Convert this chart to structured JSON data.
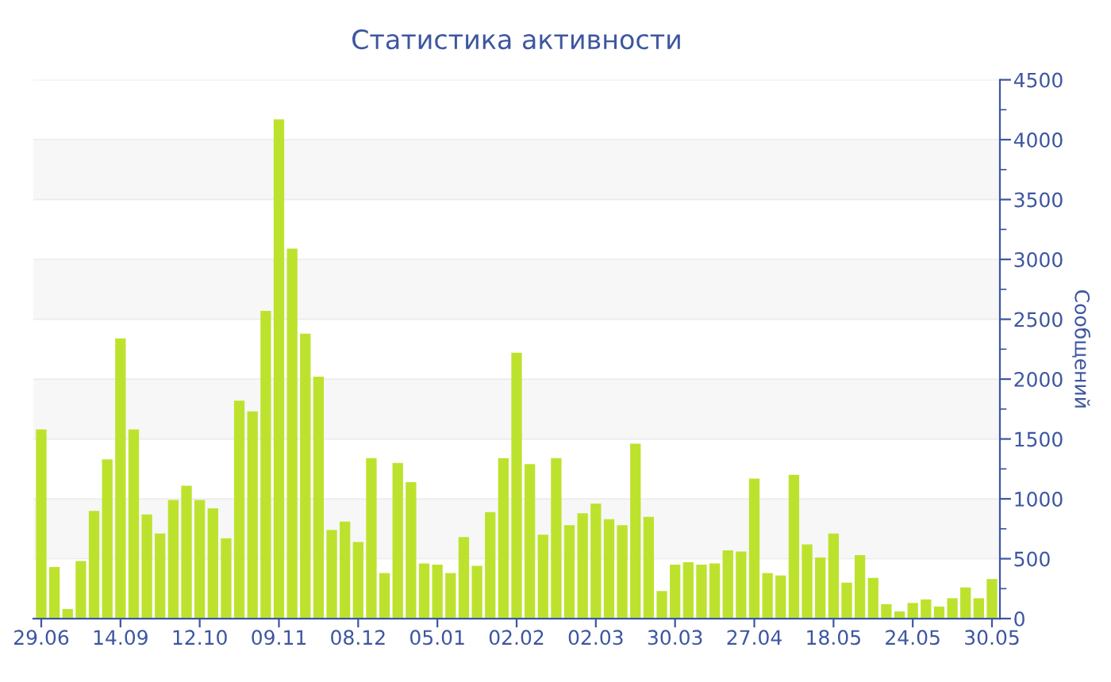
{
  "chart_data": {
    "type": "bar",
    "title": "Статистика активности",
    "ylabel": "Сообщений",
    "categories": [
      "29.06",
      null,
      null,
      null,
      null,
      null,
      "14.09",
      null,
      null,
      null,
      null,
      null,
      "12.10",
      null,
      null,
      null,
      null,
      null,
      "09.11",
      null,
      null,
      null,
      null,
      null,
      "08.12",
      null,
      null,
      null,
      null,
      null,
      "05.01",
      null,
      null,
      null,
      null,
      null,
      "02.02",
      null,
      null,
      null,
      null,
      null,
      "02.03",
      null,
      null,
      null,
      null,
      null,
      "30.03",
      null,
      null,
      null,
      null,
      null,
      "27.04",
      null,
      null,
      null,
      null,
      null,
      "18.05",
      null,
      null,
      null,
      null,
      null,
      "24.05",
      null,
      null,
      null,
      null,
      null,
      "30.05"
    ],
    "values": [
      1580,
      430,
      80,
      480,
      900,
      1330,
      2340,
      1580,
      870,
      710,
      990,
      1110,
      990,
      920,
      670,
      1820,
      1730,
      2570,
      4170,
      3090,
      2380,
      2020,
      740,
      810,
      640,
      1340,
      380,
      1300,
      1140,
      460,
      450,
      380,
      680,
      440,
      890,
      1340,
      2220,
      1290,
      700,
      1340,
      780,
      880,
      960,
      830,
      780,
      1460,
      850,
      230,
      450,
      470,
      450,
      460,
      570,
      560,
      1170,
      380,
      360,
      1200,
      620,
      510,
      710,
      300,
      530,
      340,
      120,
      60,
      130,
      160,
      100,
      170,
      260,
      170,
      330
    ],
    "color": "#bde22e",
    "ylim": [
      0,
      4500
    ],
    "yticks": [
      0,
      500,
      1000,
      1500,
      2000,
      2500,
      3000,
      3500,
      4000,
      4500
    ],
    "grid": "y"
  }
}
